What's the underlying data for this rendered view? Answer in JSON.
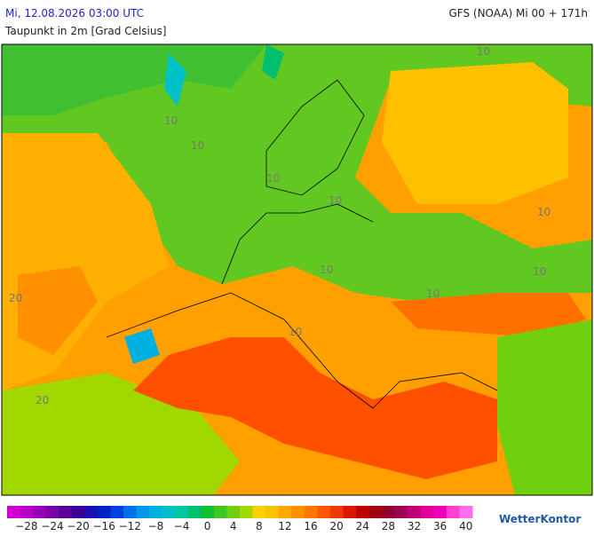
{
  "header": {
    "date": "Mi, 12.08.2026 03:00 UTC",
    "model": "GFS (NOAA) Mi 00 + 171h",
    "subtitle": "Taupunkt in 2m [Grad Celsius]"
  },
  "map_labels": [
    "10",
    "10",
    "10",
    "10",
    "10",
    "10",
    "10",
    "10",
    "10",
    "10",
    "20",
    "20"
  ],
  "legend": {
    "labels": [
      "−28",
      "−24",
      "−20",
      "−16",
      "−12",
      "−8",
      "−4",
      "0",
      "4",
      "8",
      "12",
      "16",
      "20",
      "24",
      "28",
      "32",
      "36",
      "40"
    ],
    "colors": [
      "#d000d0",
      "#b800c8",
      "#9a00b8",
      "#7a00a8",
      "#5a0098",
      "#3a0098",
      "#1a10b0",
      "#0020c8",
      "#0040e0",
      "#0070e8",
      "#0098e8",
      "#00b0e0",
      "#00c0c8",
      "#00c8a0",
      "#00c070",
      "#10c030",
      "#40c820",
      "#70d010",
      "#a0d800",
      "#ffd000",
      "#ffc000",
      "#ffa800",
      "#ff9000",
      "#ff7800",
      "#ff5800",
      "#f03800",
      "#d81800",
      "#c00000",
      "#a00010",
      "#900030",
      "#a00058",
      "#c00078",
      "#e00098",
      "#f000b8",
      "#ff40d0",
      "#ff70e8"
    ],
    "brand": "WetterKontor"
  }
}
